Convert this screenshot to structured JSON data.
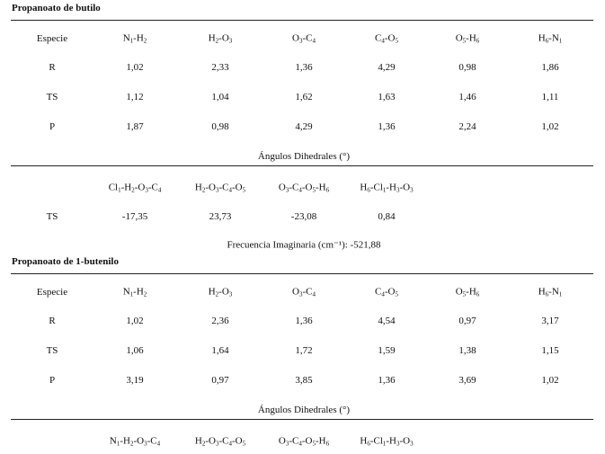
{
  "sections": [
    {
      "title": "Propanoato de butilo",
      "headers": [
        "Especie",
        "N1-H2",
        "H2-O3",
        "O3-C4",
        "C4-O5",
        "O5-H6",
        "H6-N1"
      ],
      "rows": [
        [
          "R",
          "1,02",
          "2,33",
          "1,36",
          "4,29",
          "0,98",
          "1,86"
        ],
        [
          "TS",
          "1,12",
          "1,04",
          "1,62",
          "1,63",
          "1,46",
          "1,11"
        ],
        [
          "P",
          "1,87",
          "0,98",
          "4,29",
          "1,36",
          "2,24",
          "1,02"
        ]
      ],
      "dihedral_title": "Ángulos Dihedrales (°)",
      "dihedral_headers": [
        "Cl1-H2-O3-C4",
        "H2-O3-C4-O5",
        "O3-C4-O5-H6",
        "H6-Cl1-H3-O3"
      ],
      "dihedral_rows": [
        [
          "TS",
          "-17,35",
          "23,73",
          "-23,08",
          "0,84"
        ]
      ],
      "frequency": "Frecuencia Imaginaria (cm⁻¹): -521,88"
    },
    {
      "title": "Propanoato de 1-butenilo",
      "headers": [
        "Especie",
        "N1-H2",
        "H2-O3",
        "O3-C4",
        "C4-O5",
        "O5-H6",
        "H6-N1"
      ],
      "rows": [
        [
          "R",
          "1,02",
          "2,36",
          "1,36",
          "4,54",
          "0,97",
          "3,17"
        ],
        [
          "TS",
          "1,06",
          "1,64",
          "1,72",
          "1,59",
          "1,38",
          "1,15"
        ],
        [
          "P",
          "3,19",
          "0,97",
          "3,85",
          "1,36",
          "3,69",
          "1,02"
        ]
      ],
      "dihedral_title": "Ángulos Dihedrales (°)",
      "dihedral_headers": [
        "N1-H2-O3-C4",
        "H2-O3-C4-O5",
        "O3-C4-O5-H6",
        "H6-Cl1-H3-O3"
      ]
    }
  ]
}
